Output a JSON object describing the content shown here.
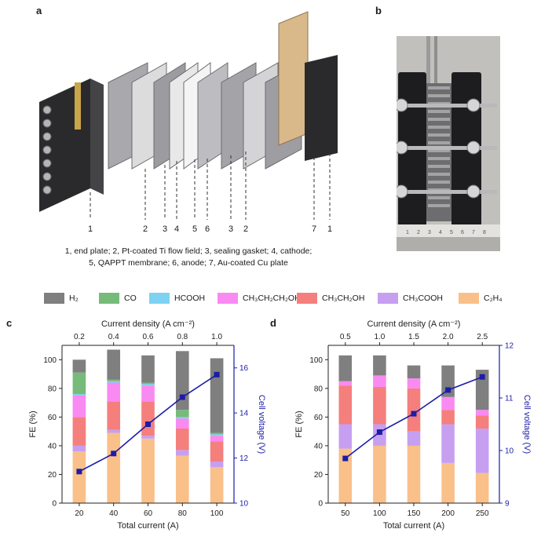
{
  "panels": {
    "a": "a",
    "b": "b",
    "c": "c",
    "d": "d"
  },
  "illustration": {
    "component_numbers": [
      "1",
      "2",
      "3",
      "4",
      "5",
      "6",
      "3",
      "2",
      "7",
      "1"
    ],
    "caption_line1": "1, end plate; 2, Pt-coated Ti flow field; 3, sealing gasket; 4, cathode;",
    "caption_line2": "5, QAPPT membrane; 6, anode; 7, Au-coated Cu plate"
  },
  "photo": {
    "ruler_numbers": [
      "1",
      "2",
      "3",
      "4",
      "5",
      "6",
      "7",
      "8"
    ]
  },
  "legend": [
    {
      "label": "H₂",
      "color": "#7f7f7f"
    },
    {
      "label": "CO",
      "color": "#77bb7a"
    },
    {
      "label": "HCOOH",
      "color": "#7dd1f2"
    },
    {
      "label": "CH₃CH₂CH₂OH",
      "color": "#f98af2"
    },
    {
      "label": "CH₃CH₂OH",
      "color": "#f47f7c"
    },
    {
      "label": "CH₃COOH",
      "color": "#c79ff1"
    },
    {
      "label": "C₂H₄",
      "color": "#f9c08a"
    }
  ],
  "chart_data": [
    {
      "type": "bar",
      "panel": "c",
      "categories": [
        "20",
        "40",
        "60",
        "80",
        "100"
      ],
      "xlabel": "Total current  (A)",
      "top_xlabel": "Current density (A cm⁻²)",
      "top_ticks": [
        "0.2",
        "0.4",
        "0.6",
        "0.8",
        "1.0"
      ],
      "ylabel": "FE (%)",
      "ylim": [
        0,
        110
      ],
      "yticks": [
        "0",
        "20",
        "40",
        "60",
        "80",
        "100"
      ],
      "y2label": "Cell voltage (V)",
      "y2lim": [
        10,
        17
      ],
      "y2ticks": [
        "10",
        "12",
        "14",
        "16"
      ],
      "series": [
        {
          "name": "C₂H₄",
          "color": "#f9c08a",
          "values": [
            36,
            49,
            45,
            33,
            25
          ]
        },
        {
          "name": "CH₃COOH",
          "color": "#c79ff1",
          "values": [
            4,
            2,
            2,
            4,
            4
          ]
        },
        {
          "name": "CH₃CH₂OH",
          "color": "#f47f7c",
          "values": [
            20,
            20,
            24,
            15,
            14
          ]
        },
        {
          "name": "CH₃CH₂CH₂OH",
          "color": "#f98af2",
          "values": [
            15,
            13,
            11,
            7,
            4
          ]
        },
        {
          "name": "HCOOH",
          "color": "#7dd1f2",
          "values": [
            1,
            1,
            1,
            1,
            1
          ]
        },
        {
          "name": "CO",
          "color": "#77bb7a",
          "values": [
            15,
            1,
            1,
            5,
            1
          ]
        },
        {
          "name": "H₂",
          "color": "#7f7f7f",
          "values": [
            9,
            21,
            19,
            41,
            52
          ]
        }
      ],
      "line": {
        "name": "Cell voltage",
        "color": "#1c1ca8",
        "values": [
          11.4,
          12.2,
          13.5,
          14.7,
          15.7
        ]
      }
    },
    {
      "type": "bar",
      "panel": "d",
      "categories": [
        "50",
        "100",
        "150",
        "200",
        "250"
      ],
      "xlabel": "Total current  (A)",
      "top_xlabel": "Current density (A cm⁻²)",
      "top_ticks": [
        "0.5",
        "1.0",
        "1.5",
        "2.0",
        "2.5"
      ],
      "ylabel": "FE (%)",
      "ylim": [
        0,
        110
      ],
      "yticks": [
        "0",
        "20",
        "40",
        "60",
        "80",
        "100"
      ],
      "y2label": "Cell voltage (V)",
      "y2lim": [
        9,
        12
      ],
      "y2ticks": [
        "9",
        "10",
        "11",
        "12"
      ],
      "series": [
        {
          "name": "C₂H₄",
          "color": "#f9c08a",
          "values": [
            38,
            40,
            40,
            28,
            21
          ]
        },
        {
          "name": "CH₃COOH",
          "color": "#c79ff1",
          "values": [
            17,
            15,
            10,
            27,
            31
          ]
        },
        {
          "name": "CH₃CH₂OH",
          "color": "#f47f7c",
          "values": [
            27,
            26,
            30,
            10,
            9
          ]
        },
        {
          "name": "CH₃CH₂CH₂OH",
          "color": "#f98af2",
          "values": [
            3,
            8,
            7,
            9,
            4
          ]
        },
        {
          "name": "HCOOH",
          "color": "#7dd1f2",
          "values": [
            0,
            0,
            0,
            0,
            0
          ]
        },
        {
          "name": "CO",
          "color": "#77bb7a",
          "values": [
            0,
            0,
            0,
            0,
            0
          ]
        },
        {
          "name": "H₂",
          "color": "#7f7f7f",
          "values": [
            18,
            14,
            9,
            22,
            28
          ]
        }
      ],
      "line": {
        "name": "Cell voltage",
        "color": "#1c1ca8",
        "values": [
          9.85,
          10.35,
          10.7,
          11.15,
          11.4
        ]
      }
    }
  ]
}
